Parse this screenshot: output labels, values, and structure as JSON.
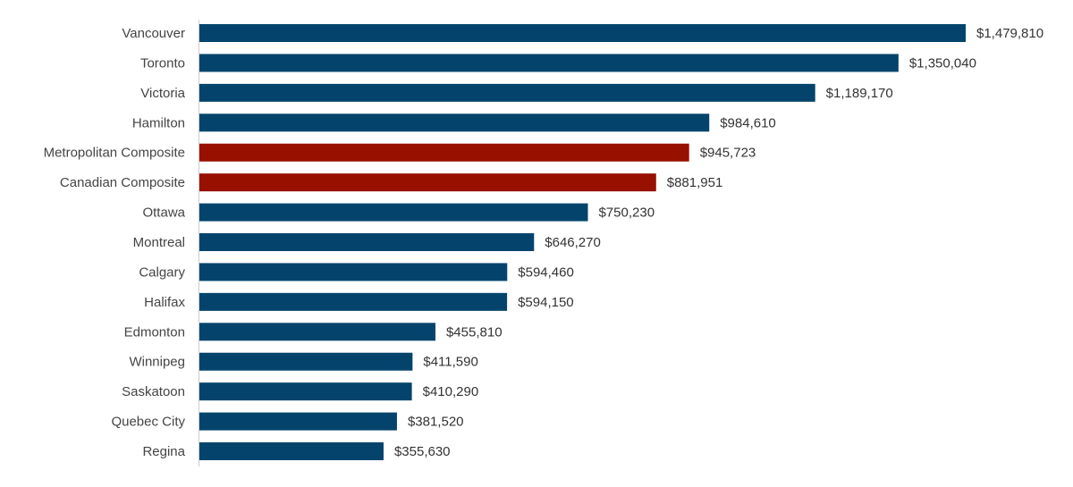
{
  "chart_data": {
    "type": "bar",
    "orientation": "horizontal",
    "categories": [
      "Vancouver",
      "Toronto",
      "Victoria",
      "Hamilton",
      "Metropolitan Composite",
      "Canadian Composite",
      "Ottawa",
      "Montreal",
      "Calgary",
      "Halifax",
      "Edmonton",
      "Winnipeg",
      "Saskatoon",
      "Quebec City",
      "Regina"
    ],
    "values": [
      1479810,
      1350040,
      1189170,
      984610,
      945723,
      881951,
      750230,
      646270,
      594460,
      594150,
      455810,
      411590,
      410290,
      381520,
      355630
    ],
    "data_labels": [
      "$1,479,810",
      "$1,350,040",
      "$1,189,170",
      "$984,610",
      "$945,723",
      "$881,951",
      "$750,230",
      "$646,270",
      "$594,460",
      "$594,150",
      "$455,810",
      "$411,590",
      "$410,290",
      "$381,520",
      "$355,630"
    ],
    "highlighted": [
      "Metropolitan Composite",
      "Canadian Composite"
    ],
    "colors": {
      "default": "#04446c",
      "highlight": "#981000",
      "axis": "#cccccc"
    },
    "xlim": [
      0,
      1479810
    ],
    "grid": false,
    "legend": "none"
  }
}
